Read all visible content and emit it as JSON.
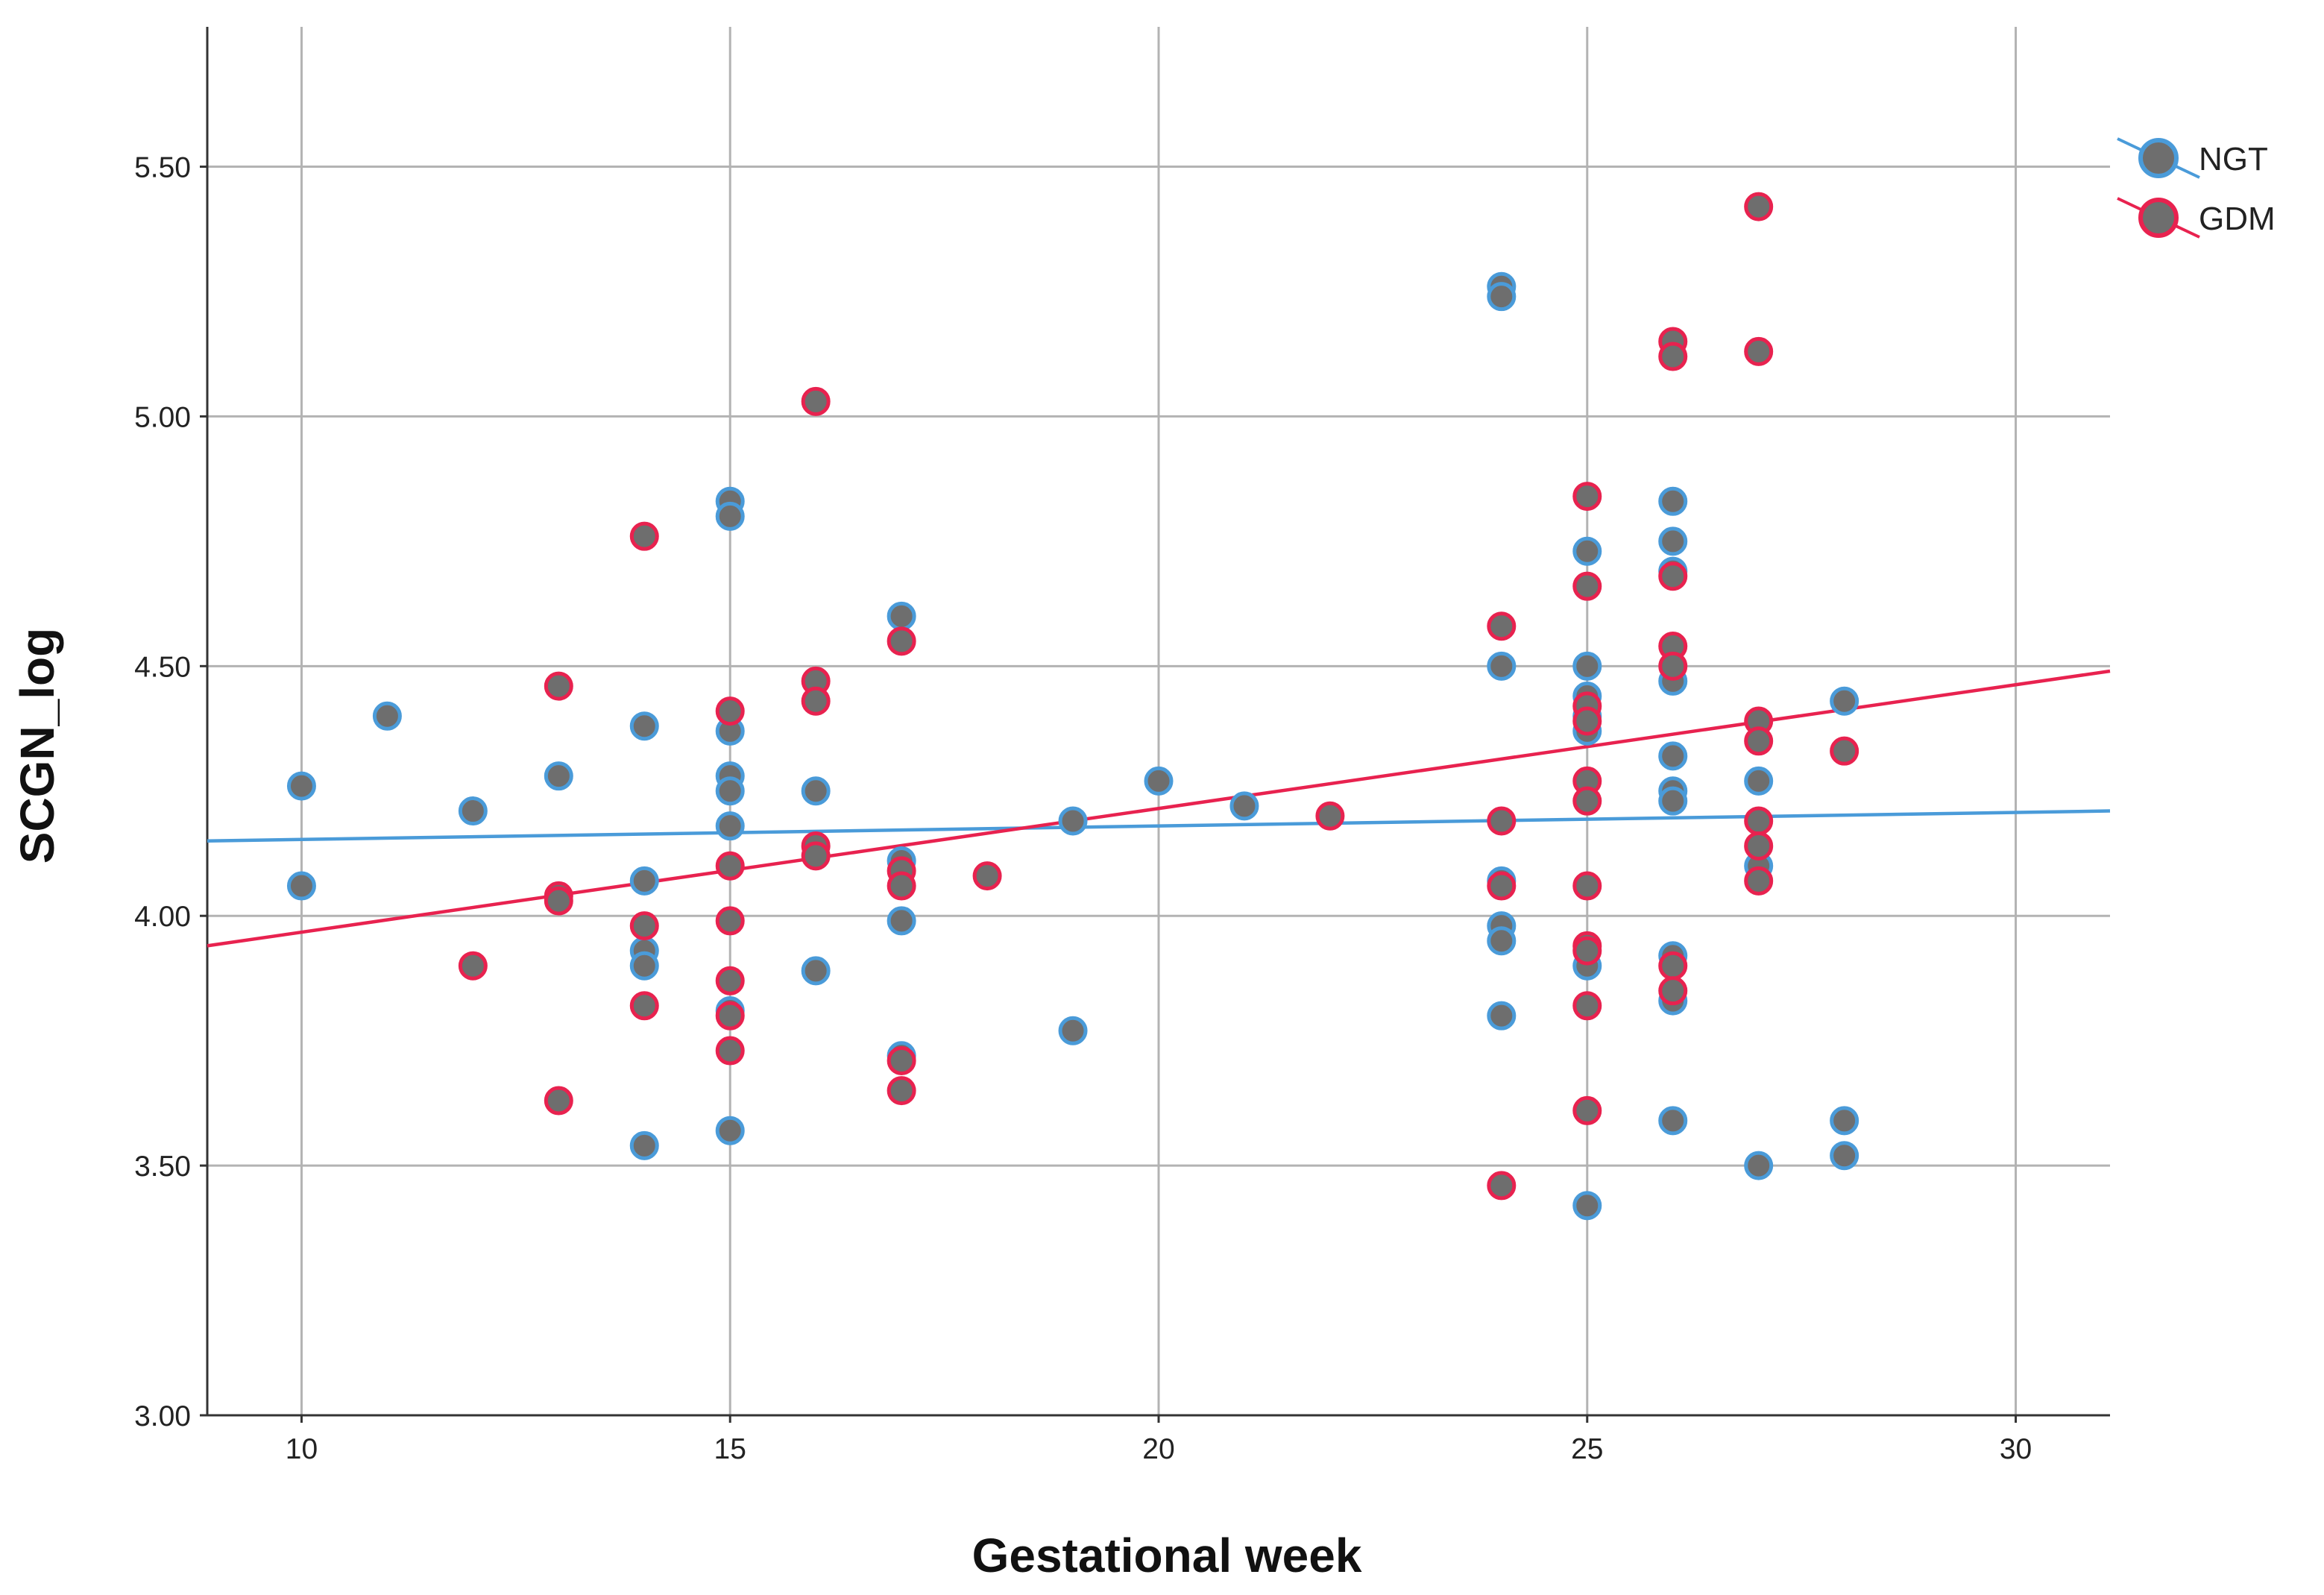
{
  "chart_data": {
    "type": "scatter",
    "xlabel": "Gestational week",
    "ylabel": "SCGN_log",
    "xlim": [
      8.9,
      31.1
    ],
    "ylim": [
      3.0,
      5.78
    ],
    "xticks": [
      10,
      15,
      20,
      25,
      30
    ],
    "yticks": [
      3.0,
      3.5,
      4.0,
      4.5,
      5.0,
      5.5
    ],
    "ytick_labels": [
      "3.00",
      "3.50",
      "4.00",
      "4.50",
      "5.00",
      "5.50"
    ],
    "grid": true,
    "legend_position": "top-right",
    "series": [
      {
        "name": "NGT",
        "color": "#4a9bd9",
        "fill": "#6e6e6e",
        "fit_line": [
          [
            8.9,
            4.15
          ],
          [
            31.1,
            4.21
          ]
        ],
        "points": [
          [
            10,
            4.26
          ],
          [
            10,
            4.06
          ],
          [
            11,
            4.4
          ],
          [
            12,
            4.21
          ],
          [
            13,
            4.28
          ],
          [
            14,
            4.38
          ],
          [
            14,
            4.07
          ],
          [
            14,
            3.93
          ],
          [
            14,
            3.9
          ],
          [
            14,
            3.54
          ],
          [
            15,
            4.83
          ],
          [
            15,
            4.8
          ],
          [
            15,
            4.37
          ],
          [
            15,
            4.28
          ],
          [
            15,
            4.25
          ],
          [
            15,
            4.18
          ],
          [
            15,
            3.81
          ],
          [
            15,
            3.57
          ],
          [
            16,
            4.25
          ],
          [
            16,
            3.89
          ],
          [
            17,
            4.6
          ],
          [
            17,
            4.11
          ],
          [
            17,
            3.99
          ],
          [
            17,
            3.72
          ],
          [
            19,
            4.19
          ],
          [
            19,
            3.77
          ],
          [
            20,
            4.27
          ],
          [
            21,
            4.22
          ],
          [
            24,
            5.26
          ],
          [
            24,
            5.24
          ],
          [
            24,
            4.5
          ],
          [
            24,
            4.07
          ],
          [
            24,
            3.98
          ],
          [
            24,
            3.95
          ],
          [
            24,
            3.8
          ],
          [
            25,
            4.73
          ],
          [
            25,
            4.5
          ],
          [
            25,
            4.44
          ],
          [
            25,
            4.4
          ],
          [
            25,
            4.37
          ],
          [
            25,
            3.9
          ],
          [
            25,
            3.42
          ],
          [
            26,
            4.83
          ],
          [
            26,
            4.75
          ],
          [
            26,
            4.69
          ],
          [
            26,
            4.47
          ],
          [
            26,
            4.32
          ],
          [
            26,
            4.25
          ],
          [
            26,
            4.23
          ],
          [
            26,
            3.92
          ],
          [
            26,
            3.83
          ],
          [
            26,
            3.59
          ],
          [
            27,
            4.27
          ],
          [
            27,
            4.1
          ],
          [
            27,
            3.5
          ],
          [
            28,
            4.43
          ],
          [
            28,
            3.59
          ],
          [
            28,
            3.52
          ]
        ]
      },
      {
        "name": "GDM",
        "color": "#e8224f",
        "fill": "#6e6e6e",
        "fit_line": [
          [
            8.9,
            3.94
          ],
          [
            31.1,
            4.49
          ]
        ],
        "points": [
          [
            12,
            3.9
          ],
          [
            13,
            4.46
          ],
          [
            13,
            4.04
          ],
          [
            13,
            4.03
          ],
          [
            13,
            3.63
          ],
          [
            14,
            4.76
          ],
          [
            14,
            3.98
          ],
          [
            14,
            3.82
          ],
          [
            15,
            4.41
          ],
          [
            15,
            4.1
          ],
          [
            15,
            3.99
          ],
          [
            15,
            3.87
          ],
          [
            15,
            3.8
          ],
          [
            15,
            3.73
          ],
          [
            16,
            5.03
          ],
          [
            16,
            4.47
          ],
          [
            16,
            4.43
          ],
          [
            16,
            4.14
          ],
          [
            16,
            4.12
          ],
          [
            17,
            4.55
          ],
          [
            17,
            4.09
          ],
          [
            17,
            4.06
          ],
          [
            17,
            3.71
          ],
          [
            17,
            3.65
          ],
          [
            18,
            4.08
          ],
          [
            22,
            4.2
          ],
          [
            24,
            4.58
          ],
          [
            24,
            4.19
          ],
          [
            24,
            4.06
          ],
          [
            24,
            3.46
          ],
          [
            25,
            4.84
          ],
          [
            25,
            4.66
          ],
          [
            25,
            4.42
          ],
          [
            25,
            4.39
          ],
          [
            25,
            4.27
          ],
          [
            25,
            4.23
          ],
          [
            25,
            4.06
          ],
          [
            25,
            3.94
          ],
          [
            25,
            3.93
          ],
          [
            25,
            3.82
          ],
          [
            25,
            3.61
          ],
          [
            26,
            5.15
          ],
          [
            26,
            5.12
          ],
          [
            26,
            4.68
          ],
          [
            26,
            4.54
          ],
          [
            26,
            4.5
          ],
          [
            26,
            3.9
          ],
          [
            26,
            3.85
          ],
          [
            27,
            5.42
          ],
          [
            27,
            5.13
          ],
          [
            27,
            4.39
          ],
          [
            27,
            4.35
          ],
          [
            27,
            4.19
          ],
          [
            27,
            4.14
          ],
          [
            27,
            4.07
          ],
          [
            28,
            4.33
          ]
        ]
      }
    ]
  }
}
